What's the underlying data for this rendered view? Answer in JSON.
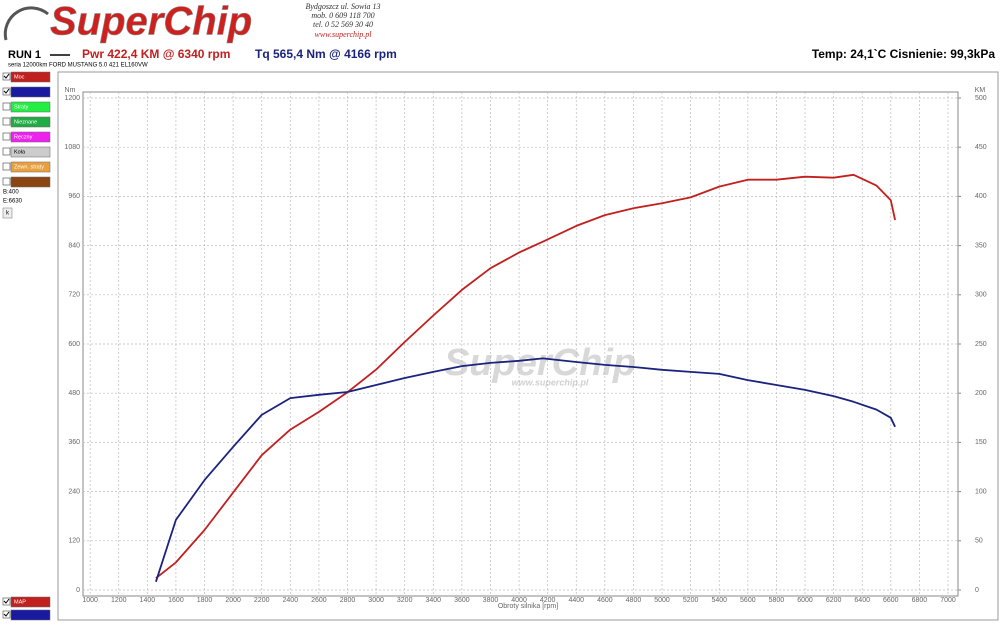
{
  "header": {
    "logo": "SuperChip",
    "address": [
      "Bydgoszcz ul. Sowia 13",
      "mob. 0 609 118 700",
      "tel. 0 52 569 30 40",
      "www.superchip.pl"
    ]
  },
  "run": {
    "name": "RUN 1",
    "power": "Pwr 422,4 KM @ 6340 rpm",
    "torque": "Tq 565,4 Nm @ 4166 rpm",
    "conditions": "Temp: 24,1`C Cisnienie: 99,3kPa",
    "description": "seria 12000km FORD MUSTANG 5.0 421 EL160VW"
  },
  "panel": {
    "items": [
      "Moc",
      "Straty",
      "Nieznane",
      "Ręczny",
      "Koła",
      "Zewn. straty"
    ],
    "begin": "B:400",
    "end": "E:6630",
    "button": "k",
    "bottom": "MAP"
  },
  "watermark": {
    "logo": "SuperChip",
    "url": "www.superchip.pl"
  },
  "chart_data": {
    "type": "line",
    "x_label": "Obroty silnika [rpm]",
    "y_label": "Nm",
    "y2_label": "KM",
    "x": [
      1460,
      1600,
      1800,
      2000,
      2200,
      2400,
      2600,
      2800,
      3000,
      3200,
      3400,
      3600,
      3800,
      4000,
      4166,
      4400,
      4600,
      4800,
      5000,
      5200,
      5400,
      5600,
      5800,
      6000,
      6200,
      6340,
      6500,
      6600,
      6630
    ],
    "series": [
      {
        "name": "Moc",
        "color": "#c0201e",
        "axis": "y2",
        "values": [
          12,
          28,
          61,
          99,
          137,
          163,
          181,
          201,
          224,
          252,
          279,
          305,
          327,
          343,
          354,
          370,
          381,
          388,
          393,
          399,
          410,
          417,
          417,
          420,
          419,
          422,
          411,
          396,
          376
        ]
      },
      {
        "color": "#1a237e",
        "values": [
          20,
          171,
          268,
          349,
          427,
          468,
          476,
          483,
          500,
          517,
          532,
          546,
          554,
          559,
          565,
          556,
          549,
          544,
          537,
          532,
          527,
          512,
          500,
          488,
          473,
          459,
          440,
          420,
          398
        ]
      }
    ],
    "xlim": [
      950,
      7070
    ],
    "xticks": [
      1000,
      1200,
      1400,
      1600,
      1800,
      2000,
      2200,
      2400,
      2600,
      2800,
      3000,
      3200,
      3400,
      3600,
      3800,
      4000,
      4200,
      4400,
      4600,
      4800,
      5000,
      5200,
      5400,
      5600,
      5800,
      6000,
      6200,
      6400,
      6600,
      6800,
      7000
    ],
    "ylim": [
      0,
      1200
    ],
    "yticks": [
      0,
      120,
      240,
      360,
      480,
      600,
      720,
      840,
      960,
      1080,
      1200
    ],
    "y2lim": [
      0,
      500
    ],
    "y2ticks": [
      0,
      50,
      100,
      150,
      200,
      250,
      300,
      350,
      400,
      450,
      500
    ],
    "grid": true
  }
}
